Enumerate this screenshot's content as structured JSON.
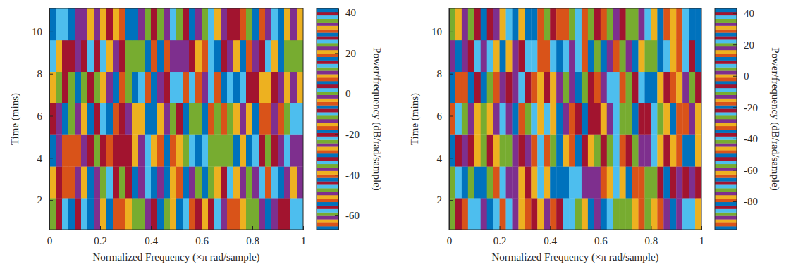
{
  "chart_data": [
    {
      "type": "heatmap",
      "x_label": "Normalized Frequency (×π rad/sample)",
      "y_label": "Time (mins)",
      "xlim": [
        0,
        1
      ],
      "xticks": [
        0,
        0.2,
        0.4,
        0.6,
        0.8,
        1
      ],
      "ylim": [
        0.6,
        11.1
      ],
      "yticks": [
        2,
        4,
        6,
        8,
        10
      ],
      "x_edges": [
        0,
        0.025,
        0.05,
        0.075,
        0.1,
        0.125,
        0.15,
        0.175,
        0.2,
        0.225,
        0.25,
        0.275,
        0.3,
        0.325,
        0.35,
        0.375,
        0.4,
        0.425,
        0.45,
        0.475,
        0.5,
        0.525,
        0.55,
        0.575,
        0.6,
        0.625,
        0.65,
        0.675,
        0.7,
        0.725,
        0.75,
        0.775,
        0.8,
        0.825,
        0.85,
        0.875,
        0.9,
        0.925,
        0.95,
        0.975,
        1
      ],
      "y_edges": [
        0.6,
        2.1,
        3.6,
        5.1,
        6.6,
        8.1,
        9.6,
        11.1
      ],
      "values": [
        [
          12,
          -8,
          25,
          -31,
          4,
          -45,
          18,
          -2,
          33,
          -19,
          7,
          -52,
          21,
          -11,
          0,
          -37,
          15,
          29,
          -24,
          9,
          -6,
          38,
          -41,
          3,
          -15,
          27,
          -58,
          11,
          -29,
          19,
          -3,
          -47,
          24,
          -13,
          6,
          35,
          -21,
          -9,
          14,
          -34
        ],
        [
          -27,
          16,
          -5,
          31,
          -49,
          8,
          -18,
          22,
          -36,
          2,
          39,
          -12,
          -44,
          17,
          -1,
          26,
          -30,
          10,
          -55,
          20,
          -16,
          5,
          34,
          -23,
          -7,
          13,
          -39,
          28,
          -10,
          -51,
          23,
          1,
          -26,
          37,
          -4,
          -33,
          18,
          -14,
          9,
          -61
        ],
        [
          30,
          -14,
          7,
          -40,
          19,
          -25,
          3,
          36,
          -8,
          -53,
          15,
          -20,
          27,
          -3,
          11,
          -46,
          32,
          -17,
          6,
          -29,
          21,
          -59,
          14,
          -6,
          38,
          -35,
          0,
          24,
          -11,
          -42,
          8,
          30,
          -22,
          16,
          -48,
          4,
          -13,
          26,
          -37,
          10
        ],
        [
          -9,
          34,
          -43,
          13,
          -2,
          21,
          -31,
          -56,
          25,
          6,
          -17,
          40,
          -26,
          9,
          -50,
          18,
          -7,
          33,
          -38,
          1,
          -21,
          29,
          -12,
          -47,
          17,
          -4,
          36,
          -28,
          12,
          -63,
          22,
          -15,
          5,
          31,
          -41,
          -1,
          19,
          -24,
          38,
          -10
        ],
        [
          20,
          -36,
          4,
          -12,
          29,
          -48,
          15,
          -23,
          8,
          35,
          -6,
          -40,
          24,
          -18,
          2,
          31,
          -54,
          11,
          -9,
          26,
          -33,
          7,
          -45,
          19,
          -2,
          37,
          -16,
          -30,
          14,
          5,
          -57,
          27,
          -8,
          -39,
          21,
          3,
          -25,
          33,
          -14,
          -50
        ],
        [
          -45,
          9,
          28,
          -20,
          -1,
          16,
          -34,
          39,
          -10,
          -27,
          22,
          3,
          -60,
          13,
          -24,
          30,
          -5,
          -43,
          19,
          -14,
          34,
          -1,
          -32,
          8,
          -52,
          25,
          -19,
          15,
          -37,
          32,
          -6,
          -28,
          11,
          -44,
          26,
          -3,
          -18,
          36,
          -11,
          1
        ],
        [
          5,
          -22,
          37,
          -7,
          -38,
          23,
          -15,
          10,
          -51,
          28,
          -3,
          -29,
          17,
          -42,
          35,
          -11,
          4,
          -35,
          23,
          -58,
          12,
          -8,
          30,
          -26,
          0,
          -46,
          21,
          -13,
          39,
          -20,
          7,
          -36,
          29,
          -5,
          -49,
          14,
          -31,
          20,
          -2,
          -27
        ]
      ],
      "colorbar": {
        "label": "Power/frequency (dB/rad/sample)",
        "range": [
          -67,
          42
        ],
        "ticks": [
          -60,
          -40,
          -20,
          0,
          20,
          40
        ]
      }
    },
    {
      "type": "heatmap",
      "x_label": "Normalized Frequency (×π rad/sample)",
      "y_label": "Time (mins)",
      "xlim": [
        0,
        1
      ],
      "xticks": [
        0,
        0.2,
        0.4,
        0.6,
        0.8,
        1
      ],
      "ylim": [
        0.6,
        11.1
      ],
      "yticks": [
        2,
        4,
        6,
        8,
        10
      ],
      "x_edges": [
        0,
        0.025,
        0.05,
        0.075,
        0.1,
        0.125,
        0.15,
        0.175,
        0.2,
        0.225,
        0.25,
        0.275,
        0.3,
        0.325,
        0.35,
        0.375,
        0.4,
        0.425,
        0.45,
        0.475,
        0.5,
        0.525,
        0.55,
        0.575,
        0.6,
        0.625,
        0.65,
        0.675,
        0.7,
        0.725,
        0.75,
        0.775,
        0.8,
        0.825,
        0.85,
        0.875,
        0.9,
        0.925,
        0.95,
        0.975,
        1
      ],
      "y_edges": [
        0.6,
        2.1,
        3.6,
        5.1,
        6.6,
        8.1,
        9.6,
        11.1
      ],
      "values": [
        [
          -12,
          25,
          -48,
          6,
          -71,
          33,
          -20,
          -85,
          14,
          -39,
          2,
          -62,
          29,
          -7,
          -93,
          18,
          -33,
          9,
          -55,
          37,
          -26,
          -78,
          11,
          -14,
          -66,
          22,
          -41,
          4,
          -89,
          31,
          -17,
          -58,
          15,
          -3,
          -74,
          27,
          -45,
          -9,
          38,
          -30
        ],
        [
          19,
          -54,
          -4,
          35,
          -81,
          10,
          -27,
          -64,
          23,
          -13,
          -91,
          30,
          -38,
          1,
          -70,
          16,
          -50,
          26,
          -19,
          -86,
          7,
          -44,
          34,
          -60,
          -2,
          -76,
          21,
          -31,
          12,
          -95,
          28,
          -10,
          -57,
          39,
          -36,
          -68,
          3,
          -23,
          17,
          -83
        ],
        [
          -67,
          8,
          -29,
          40,
          -15,
          -88,
          24,
          -46,
          5,
          -73,
          32,
          -21,
          -59,
          13,
          -8,
          -94,
          20,
          -35,
          -1,
          -79,
          27,
          -52,
          15,
          -11,
          -84,
          36,
          -25,
          -63,
          9,
          -42,
          3,
          -90,
          22,
          -16,
          -69,
          30,
          -48,
          -5,
          11,
          -77
        ],
        [
          28,
          -40,
          -10,
          17,
          -92,
          4,
          -61,
          33,
          -24,
          -75,
          12,
          -3,
          -87,
          21,
          -47,
          38,
          -16,
          -65,
          2,
          -34,
          25,
          -82,
          -6,
          -53,
          16,
          -28,
          37,
          -72,
          -12,
          -97,
          24,
          -37,
          7,
          -58,
          31,
          -20,
          -80,
          14,
          -43,
          -1
        ],
        [
          -35,
          14,
          -79,
          26,
          -6,
          -51,
          36,
          -18,
          -90,
          9,
          -43,
          22,
          -68,
          -2,
          31,
          -84,
          15,
          -29,
          -58,
          3,
          -96,
          19,
          -37,
          29,
          -13,
          -70,
          6,
          -49,
          35,
          -22,
          -86,
          12,
          -4,
          -61,
          25,
          -33,
          -1,
          -75,
          20,
          -52
        ],
        [
          3,
          -66,
          34,
          -23,
          -85,
          18,
          -9,
          -47,
          27,
          -78,
          -14,
          39,
          -56,
          7,
          -32,
          -95,
          23,
          -5,
          -71,
          32,
          -40,
          -17,
          10,
          -88,
          26,
          -60,
          -3,
          20,
          -45,
          -81,
          16,
          -26,
          36,
          -67,
          -8,
          -92,
          29,
          -39,
          8,
          -19
        ],
        [
          -88,
          31,
          -14,
          -57,
          9,
          -36,
          24,
          -74,
          -1,
          37,
          -50,
          16,
          -82,
          -19,
          28,
          -41,
          -7,
          -94,
          13,
          -27,
          38,
          -63,
          -10,
          24,
          -48,
          -89,
          18,
          -21,
          5,
          -72,
          33,
          -54,
          -15,
          27,
          -80,
          1,
          -34,
          21,
          -65,
          11
        ]
      ],
      "colorbar": {
        "label": "Power/frequency (dB/rad/sample)",
        "range": [
          -98,
          43
        ],
        "ticks": [
          -80,
          -60,
          -40,
          -20,
          0,
          20,
          40
        ]
      }
    }
  ]
}
